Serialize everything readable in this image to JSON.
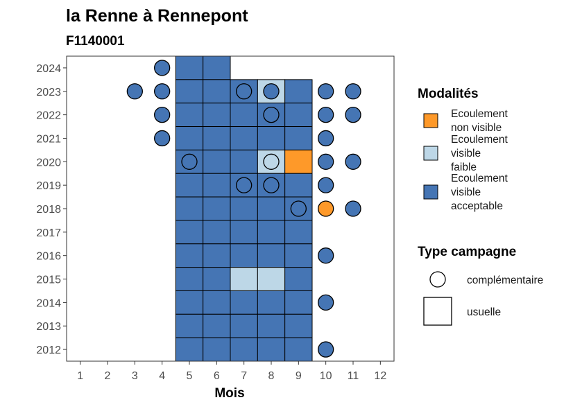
{
  "chart_data": {
    "type": "heatmap",
    "title": "la Renne à Rennepont",
    "subtitle": "F1140001",
    "xlabel": "Mois",
    "ylabel": "",
    "x_ticks": [
      "1",
      "2",
      "3",
      "4",
      "5",
      "6",
      "7",
      "8",
      "9",
      "10",
      "11",
      "12"
    ],
    "y_ticks": [
      "2012",
      "2013",
      "2014",
      "2015",
      "2016",
      "2017",
      "2018",
      "2019",
      "2020",
      "2021",
      "2022",
      "2023",
      "2024"
    ],
    "xlim": [
      0.5,
      12.5
    ],
    "ylim": [
      2011.5,
      2024.5
    ],
    "grid": false,
    "legend_placement": "right",
    "colors": {
      "non_visible": "#fe9929",
      "faible": "#bdd7e7",
      "acceptable": "#4575b4"
    },
    "legend_modalites": {
      "title": "Modalités",
      "items": [
        {
          "key": "non_visible",
          "lines": [
            "Ecoulement",
            "non visible"
          ]
        },
        {
          "key": "faible",
          "lines": [
            "Ecoulement",
            "visible",
            "faible"
          ]
        },
        {
          "key": "acceptable",
          "lines": [
            "Ecoulement",
            "visible",
            "acceptable"
          ]
        }
      ]
    },
    "legend_type": {
      "title": "Type campagne",
      "items": [
        {
          "shape": "circle",
          "label": "complémentaire"
        },
        {
          "shape": "square",
          "label": "usuelle"
        }
      ]
    },
    "usuelle": [
      {
        "year": 2024,
        "month": 5,
        "modalite": "acceptable"
      },
      {
        "year": 2024,
        "month": 6,
        "modalite": "acceptable"
      },
      {
        "year": 2023,
        "month": 5,
        "modalite": "acceptable"
      },
      {
        "year": 2023,
        "month": 6,
        "modalite": "acceptable"
      },
      {
        "year": 2023,
        "month": 7,
        "modalite": "acceptable"
      },
      {
        "year": 2023,
        "month": 8,
        "modalite": "faible"
      },
      {
        "year": 2023,
        "month": 9,
        "modalite": "acceptable"
      },
      {
        "year": 2022,
        "month": 5,
        "modalite": "acceptable"
      },
      {
        "year": 2022,
        "month": 6,
        "modalite": "acceptable"
      },
      {
        "year": 2022,
        "month": 7,
        "modalite": "acceptable"
      },
      {
        "year": 2022,
        "month": 8,
        "modalite": "acceptable"
      },
      {
        "year": 2022,
        "month": 9,
        "modalite": "acceptable"
      },
      {
        "year": 2021,
        "month": 5,
        "modalite": "acceptable"
      },
      {
        "year": 2021,
        "month": 6,
        "modalite": "acceptable"
      },
      {
        "year": 2021,
        "month": 7,
        "modalite": "acceptable"
      },
      {
        "year": 2021,
        "month": 8,
        "modalite": "acceptable"
      },
      {
        "year": 2021,
        "month": 9,
        "modalite": "acceptable"
      },
      {
        "year": 2020,
        "month": 5,
        "modalite": "acceptable"
      },
      {
        "year": 2020,
        "month": 6,
        "modalite": "acceptable"
      },
      {
        "year": 2020,
        "month": 7,
        "modalite": "acceptable"
      },
      {
        "year": 2020,
        "month": 8,
        "modalite": "faible"
      },
      {
        "year": 2020,
        "month": 9,
        "modalite": "non_visible"
      },
      {
        "year": 2019,
        "month": 5,
        "modalite": "acceptable"
      },
      {
        "year": 2019,
        "month": 6,
        "modalite": "acceptable"
      },
      {
        "year": 2019,
        "month": 7,
        "modalite": "acceptable"
      },
      {
        "year": 2019,
        "month": 8,
        "modalite": "acceptable"
      },
      {
        "year": 2019,
        "month": 9,
        "modalite": "acceptable"
      },
      {
        "year": 2018,
        "month": 5,
        "modalite": "acceptable"
      },
      {
        "year": 2018,
        "month": 6,
        "modalite": "acceptable"
      },
      {
        "year": 2018,
        "month": 7,
        "modalite": "acceptable"
      },
      {
        "year": 2018,
        "month": 8,
        "modalite": "acceptable"
      },
      {
        "year": 2018,
        "month": 9,
        "modalite": "acceptable"
      },
      {
        "year": 2017,
        "month": 5,
        "modalite": "acceptable"
      },
      {
        "year": 2017,
        "month": 6,
        "modalite": "acceptable"
      },
      {
        "year": 2017,
        "month": 7,
        "modalite": "acceptable"
      },
      {
        "year": 2017,
        "month": 8,
        "modalite": "acceptable"
      },
      {
        "year": 2017,
        "month": 9,
        "modalite": "acceptable"
      },
      {
        "year": 2016,
        "month": 5,
        "modalite": "acceptable"
      },
      {
        "year": 2016,
        "month": 6,
        "modalite": "acceptable"
      },
      {
        "year": 2016,
        "month": 7,
        "modalite": "acceptable"
      },
      {
        "year": 2016,
        "month": 8,
        "modalite": "acceptable"
      },
      {
        "year": 2016,
        "month": 9,
        "modalite": "acceptable"
      },
      {
        "year": 2015,
        "month": 5,
        "modalite": "acceptable"
      },
      {
        "year": 2015,
        "month": 6,
        "modalite": "acceptable"
      },
      {
        "year": 2015,
        "month": 7,
        "modalite": "faible"
      },
      {
        "year": 2015,
        "month": 8,
        "modalite": "faible"
      },
      {
        "year": 2015,
        "month": 9,
        "modalite": "acceptable"
      },
      {
        "year": 2014,
        "month": 5,
        "modalite": "acceptable"
      },
      {
        "year": 2014,
        "month": 6,
        "modalite": "acceptable"
      },
      {
        "year": 2014,
        "month": 7,
        "modalite": "acceptable"
      },
      {
        "year": 2014,
        "month": 8,
        "modalite": "acceptable"
      },
      {
        "year": 2014,
        "month": 9,
        "modalite": "acceptable"
      },
      {
        "year": 2013,
        "month": 5,
        "modalite": "acceptable"
      },
      {
        "year": 2013,
        "month": 6,
        "modalite": "acceptable"
      },
      {
        "year": 2013,
        "month": 7,
        "modalite": "acceptable"
      },
      {
        "year": 2013,
        "month": 8,
        "modalite": "acceptable"
      },
      {
        "year": 2013,
        "month": 9,
        "modalite": "acceptable"
      },
      {
        "year": 2012,
        "month": 5,
        "modalite": "acceptable"
      },
      {
        "year": 2012,
        "month": 6,
        "modalite": "acceptable"
      },
      {
        "year": 2012,
        "month": 7,
        "modalite": "acceptable"
      },
      {
        "year": 2012,
        "month": 8,
        "modalite": "acceptable"
      },
      {
        "year": 2012,
        "month": 9,
        "modalite": "acceptable"
      }
    ],
    "complementaire": [
      {
        "year": 2024,
        "month": 4,
        "modalite": "acceptable"
      },
      {
        "year": 2023,
        "month": 3,
        "modalite": "acceptable"
      },
      {
        "year": 2023,
        "month": 4,
        "modalite": "acceptable"
      },
      {
        "year": 2023,
        "month": 7,
        "modalite": "acceptable"
      },
      {
        "year": 2023,
        "month": 8,
        "modalite": "acceptable"
      },
      {
        "year": 2023,
        "month": 10,
        "modalite": "acceptable"
      },
      {
        "year": 2023,
        "month": 11,
        "modalite": "acceptable"
      },
      {
        "year": 2022,
        "month": 4,
        "modalite": "acceptable"
      },
      {
        "year": 2022,
        "month": 8,
        "modalite": "acceptable"
      },
      {
        "year": 2022,
        "month": 10,
        "modalite": "acceptable"
      },
      {
        "year": 2022,
        "month": 11,
        "modalite": "acceptable"
      },
      {
        "year": 2021,
        "month": 4,
        "modalite": "acceptable"
      },
      {
        "year": 2021,
        "month": 10,
        "modalite": "acceptable"
      },
      {
        "year": 2020,
        "month": 5,
        "modalite": "acceptable"
      },
      {
        "year": 2020,
        "month": 8,
        "modalite": "faible"
      },
      {
        "year": 2020,
        "month": 10,
        "modalite": "acceptable"
      },
      {
        "year": 2020,
        "month": 11,
        "modalite": "acceptable"
      },
      {
        "year": 2019,
        "month": 7,
        "modalite": "acceptable"
      },
      {
        "year": 2019,
        "month": 8,
        "modalite": "acceptable"
      },
      {
        "year": 2019,
        "month": 10,
        "modalite": "acceptable"
      },
      {
        "year": 2018,
        "month": 9,
        "modalite": "acceptable"
      },
      {
        "year": 2018,
        "month": 10,
        "modalite": "non_visible"
      },
      {
        "year": 2018,
        "month": 11,
        "modalite": "acceptable"
      },
      {
        "year": 2016,
        "month": 10,
        "modalite": "acceptable"
      },
      {
        "year": 2014,
        "month": 10,
        "modalite": "acceptable"
      },
      {
        "year": 2012,
        "month": 10,
        "modalite": "acceptable"
      }
    ]
  }
}
